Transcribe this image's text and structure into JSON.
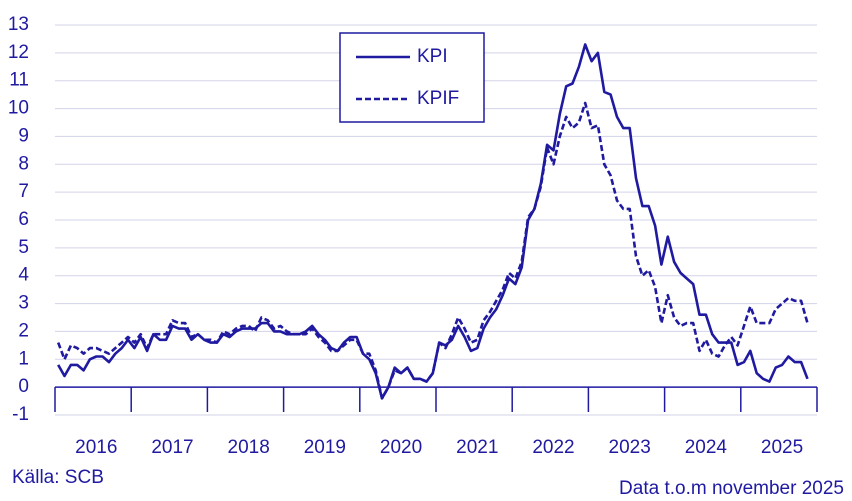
{
  "chart_data": {
    "type": "line",
    "categories": [
      null,
      null,
      null,
      null,
      null,
      null,
      "2016",
      null,
      null,
      null,
      null,
      null,
      null,
      null,
      null,
      null,
      null,
      null,
      "2017",
      null,
      null,
      null,
      null,
      null,
      null,
      null,
      null,
      null,
      null,
      null,
      "2018",
      null,
      null,
      null,
      null,
      null,
      null,
      null,
      null,
      null,
      null,
      null,
      "2019",
      null,
      null,
      null,
      null,
      null,
      null,
      null,
      null,
      null,
      null,
      null,
      "2020",
      null,
      null,
      null,
      null,
      null,
      null,
      null,
      null,
      null,
      null,
      null,
      "2021",
      null,
      null,
      null,
      null,
      null,
      null,
      null,
      null,
      null,
      null,
      null,
      "2022",
      null,
      null,
      null,
      null,
      null,
      null,
      null,
      null,
      null,
      null,
      null,
      "2023",
      null,
      null,
      null,
      null,
      null,
      null,
      null,
      null,
      null,
      null,
      null,
      "2024",
      null,
      null,
      null,
      null,
      null,
      null,
      null,
      null,
      null,
      null,
      null,
      "2025",
      null,
      null,
      null,
      null
    ],
    "series": [
      {
        "name": "KPI",
        "color": "#1f1aa0",
        "line_style": "solid",
        "values": [
          0.8,
          0.4,
          0.8,
          0.8,
          0.6,
          1.0,
          1.1,
          1.1,
          0.9,
          1.2,
          1.4,
          1.7,
          1.4,
          1.8,
          1.3,
          1.9,
          1.7,
          1.7,
          2.2,
          2.1,
          2.1,
          1.7,
          1.9,
          1.7,
          1.6,
          1.6,
          1.9,
          1.8,
          2.0,
          2.1,
          2.1,
          2.1,
          2.3,
          2.3,
          2.0,
          2.0,
          1.9,
          1.9,
          1.9,
          2.0,
          2.2,
          1.9,
          1.7,
          1.4,
          1.3,
          1.6,
          1.8,
          1.8,
          1.2,
          1.0,
          0.5,
          -0.4,
          0.0,
          0.7,
          0.5,
          0.7,
          0.3,
          0.3,
          0.2,
          0.5,
          1.6,
          1.5,
          1.7,
          2.2,
          1.8,
          1.3,
          1.4,
          2.1,
          2.5,
          2.8,
          3.3,
          3.9,
          3.7,
          4.3,
          6.0,
          6.4,
          7.3,
          8.7,
          8.5,
          9.8,
          10.8,
          10.9,
          11.5,
          12.3,
          11.7,
          12.0,
          10.6,
          10.5,
          9.7,
          9.3,
          9.3,
          7.5,
          6.5,
          6.5,
          5.8,
          4.4,
          5.4,
          4.5,
          4.1,
          3.9,
          3.7,
          2.6,
          2.6,
          1.9,
          1.6,
          1.6,
          1.6,
          0.8,
          0.9,
          1.3,
          0.5,
          0.3,
          0.2,
          0.7,
          0.8,
          1.1,
          0.9,
          0.9,
          0.3
        ]
      },
      {
        "name": "KPIF",
        "color": "#1f1aa0",
        "line_style": "dashed",
        "values": [
          1.6,
          1.0,
          1.5,
          1.4,
          1.2,
          1.4,
          1.4,
          1.3,
          1.2,
          1.4,
          1.6,
          1.8,
          1.6,
          1.9,
          1.4,
          1.9,
          1.9,
          1.9,
          2.4,
          2.3,
          2.3,
          1.8,
          1.9,
          1.7,
          1.7,
          1.6,
          2.0,
          1.9,
          2.1,
          2.2,
          2.2,
          2.0,
          2.5,
          2.4,
          2.1,
          2.2,
          2.0,
          1.9,
          1.9,
          1.9,
          2.1,
          1.8,
          1.6,
          1.3,
          1.3,
          1.5,
          1.7,
          1.7,
          1.2,
          1.2,
          0.6,
          -0.4,
          0.0,
          0.6,
          0.5,
          0.7,
          0.3,
          0.3,
          0.2,
          0.5,
          1.6,
          1.4,
          1.9,
          2.5,
          2.1,
          1.6,
          1.7,
          2.4,
          2.7,
          3.1,
          3.5,
          4.1,
          3.9,
          4.5,
          6.1,
          6.4,
          7.2,
          8.6,
          8.0,
          9.0,
          9.7,
          9.3,
          9.5,
          10.2,
          9.3,
          9.4,
          8.0,
          7.6,
          6.7,
          6.4,
          6.4,
          4.7,
          4.0,
          4.2,
          3.6,
          2.3,
          3.3,
          2.5,
          2.2,
          2.3,
          2.3,
          1.3,
          1.7,
          1.2,
          1.1,
          1.5,
          1.8,
          1.5,
          2.2,
          2.9,
          2.3,
          2.3,
          2.3,
          2.8,
          3.0,
          3.2,
          3.1,
          3.1,
          2.3
        ]
      }
    ],
    "ylim": [
      -1,
      13
    ],
    "yticks": [
      -1,
      0,
      1,
      2,
      3,
      4,
      5,
      6,
      7,
      8,
      9,
      10,
      11,
      12,
      13
    ],
    "grid": true,
    "source": "Källa: SCB",
    "note": "Data t.o.m november 2025"
  }
}
